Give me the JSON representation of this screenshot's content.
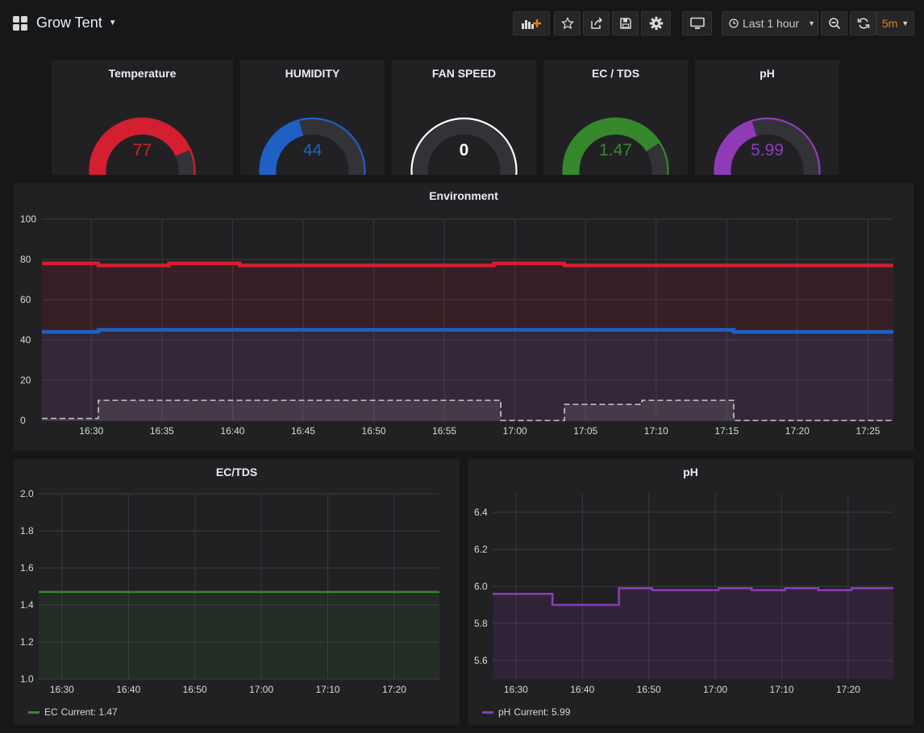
{
  "header": {
    "dashboard_title": "Grow Tent",
    "time_range": "Last 1 hour",
    "refresh_interval": "5m",
    "accent_color": "#eb7b18"
  },
  "toolbar_icons": [
    "add-panel-icon",
    "star-icon",
    "share-icon",
    "save-icon",
    "gear-icon",
    "monitor-icon",
    "clock-icon",
    "zoom-out-icon",
    "refresh-icon"
  ],
  "gauges": [
    {
      "title": "Temperature",
      "value": "77",
      "level": 0.77,
      "color": "#d41f30"
    },
    {
      "title": "HUMIDITY",
      "value": "44",
      "level": 0.44,
      "color": "#1f60c4"
    },
    {
      "title": "FAN SPEED",
      "value": "0",
      "level": 0,
      "color": "#ffffff"
    },
    {
      "title": "EC / TDS",
      "value": "1.47",
      "level": 0.735,
      "color": "#37872d"
    },
    {
      "title": "pH",
      "value": "5.99",
      "level": 0.43,
      "color": "#8f3bb8"
    }
  ],
  "environment": {
    "title": "Environment",
    "chart_data": {
      "type": "area",
      "x_ticks": [
        "16:30",
        "16:35",
        "16:40",
        "16:45",
        "16:50",
        "16:55",
        "17:00",
        "17:05",
        "17:10",
        "17:15",
        "17:20",
        "17:25"
      ],
      "x_range_minutes": [
        -3.5,
        56.8
      ],
      "ylim": [
        0,
        100
      ],
      "y_ticks": [
        "0",
        "20",
        "40",
        "60",
        "80",
        "100"
      ],
      "grid": true,
      "series": [
        {
          "color": "#d41f30",
          "points": [
            [
              -3.5,
              78
            ],
            [
              0.5,
              78
            ],
            [
              0.5,
              77
            ],
            [
              5.5,
              77
            ],
            [
              5.5,
              78
            ],
            [
              10.5,
              78
            ],
            [
              10.5,
              77
            ],
            [
              28.5,
              77
            ],
            [
              28.5,
              78
            ],
            [
              33.5,
              78
            ],
            [
              33.5,
              77
            ],
            [
              56.8,
              77
            ]
          ]
        },
        {
          "color": "#1f60c4",
          "points": [
            [
              -3.5,
              44
            ],
            [
              0.5,
              44
            ],
            [
              0.5,
              45
            ],
            [
              45.5,
              45
            ],
            [
              45.5,
              44
            ],
            [
              56.8,
              44
            ]
          ]
        },
        {
          "color": "#c8c8c8",
          "dashed": true,
          "points": [
            [
              -3.5,
              1
            ],
            [
              0.5,
              1
            ],
            [
              0.5,
              10
            ],
            [
              29,
              10
            ],
            [
              29,
              0
            ],
            [
              33.5,
              0
            ],
            [
              33.5,
              8
            ],
            [
              39,
              8
            ],
            [
              39,
              10
            ],
            [
              45.5,
              10
            ],
            [
              45.5,
              0
            ],
            [
              56.8,
              0
            ]
          ]
        }
      ]
    }
  },
  "ec_panel": {
    "title": "EC/TDS",
    "legend_name": "EC",
    "legend_current": "Current: 1.47",
    "chart_data": {
      "type": "area",
      "x_ticks": [
        "16:30",
        "16:40",
        "16:50",
        "17:00",
        "17:10",
        "17:20"
      ],
      "x_range_minutes": [
        -3.5,
        56.8
      ],
      "ylim": [
        1.0,
        2.0
      ],
      "y_ticks": [
        "1.0",
        "1.2",
        "1.4",
        "1.6",
        "1.8",
        "2.0"
      ],
      "grid": true,
      "series": [
        {
          "name": "EC",
          "color": "#37872d",
          "points": [
            [
              -3.5,
              1.47
            ],
            [
              56.8,
              1.47
            ]
          ]
        }
      ]
    }
  },
  "ph_panel": {
    "title": "pH",
    "legend_name": "pH",
    "legend_current": "Current: 5.99",
    "chart_data": {
      "type": "area",
      "x_ticks": [
        "16:30",
        "16:40",
        "16:50",
        "17:00",
        "17:10",
        "17:20"
      ],
      "x_range_minutes": [
        -3.5,
        56.8
      ],
      "ylim": [
        5.5,
        6.5
      ],
      "y_ticks": [
        "5.6",
        "5.8",
        "6.0",
        "6.2",
        "6.4"
      ],
      "grid": true,
      "series": [
        {
          "name": "pH",
          "color": "#8f3bb8",
          "points": [
            [
              -3.5,
              5.96
            ],
            [
              5.5,
              5.96
            ],
            [
              5.5,
              5.9
            ],
            [
              15.5,
              5.9
            ],
            [
              15.5,
              5.99
            ],
            [
              20.5,
              5.99
            ],
            [
              20.5,
              5.98
            ],
            [
              30.5,
              5.98
            ],
            [
              30.5,
              5.99
            ],
            [
              35.5,
              5.99
            ],
            [
              35.5,
              5.98
            ],
            [
              40.5,
              5.98
            ],
            [
              40.5,
              5.99
            ],
            [
              45.5,
              5.99
            ],
            [
              45.5,
              5.98
            ],
            [
              50.5,
              5.98
            ],
            [
              50.5,
              5.99
            ],
            [
              56.8,
              5.99
            ]
          ]
        }
      ]
    }
  }
}
